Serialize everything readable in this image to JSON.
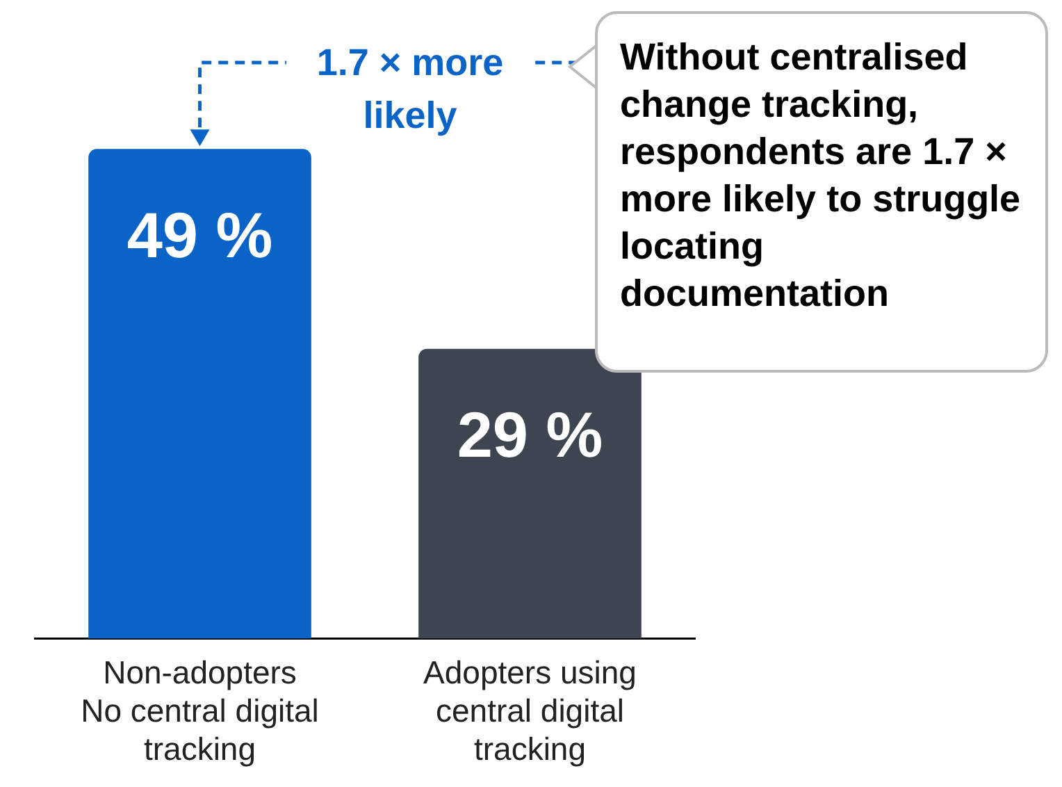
{
  "chart_data": {
    "type": "bar",
    "categories": [
      "Non-adopters\nNo central digital\ntracking",
      "Adopters using\ncentral digital\ntracking"
    ],
    "values": [
      49,
      29
    ],
    "colors": [
      "#0a64c8",
      "#3d4650"
    ],
    "value_labels": [
      "49 %",
      "29 %"
    ],
    "annotations": [
      "1.7 × more likely",
      "Without centralised change tracking, respondents are 1.7 × more likely to struggle locating documentation"
    ],
    "grid": false,
    "legend": false
  }
}
